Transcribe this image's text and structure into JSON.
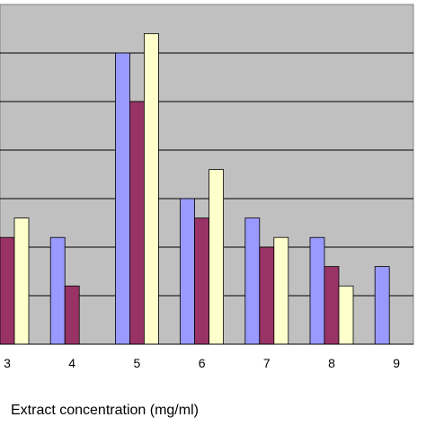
{
  "chart_data": {
    "type": "bar",
    "title": "",
    "xlabel": "Extract concentration (mg/ml)",
    "ylabel": "",
    "categories": [
      "3",
      "4",
      "5",
      "6",
      "7",
      "8",
      "9"
    ],
    "ylim": [
      0,
      7
    ],
    "grid": true,
    "legend": "none",
    "plot_background": "#c0c0c0",
    "series": [
      {
        "color": "#9999ff",
        "values": [
          null,
          2.2,
          6.0,
          3.0,
          2.6,
          2.2,
          1.6
        ]
      },
      {
        "color": "#993366",
        "values": [
          2.2,
          1.2,
          5.0,
          2.6,
          2.0,
          1.6,
          null
        ]
      },
      {
        "color": "#ffffcc",
        "values": [
          2.6,
          null,
          6.4,
          3.6,
          2.2,
          1.2,
          null
        ]
      }
    ]
  }
}
